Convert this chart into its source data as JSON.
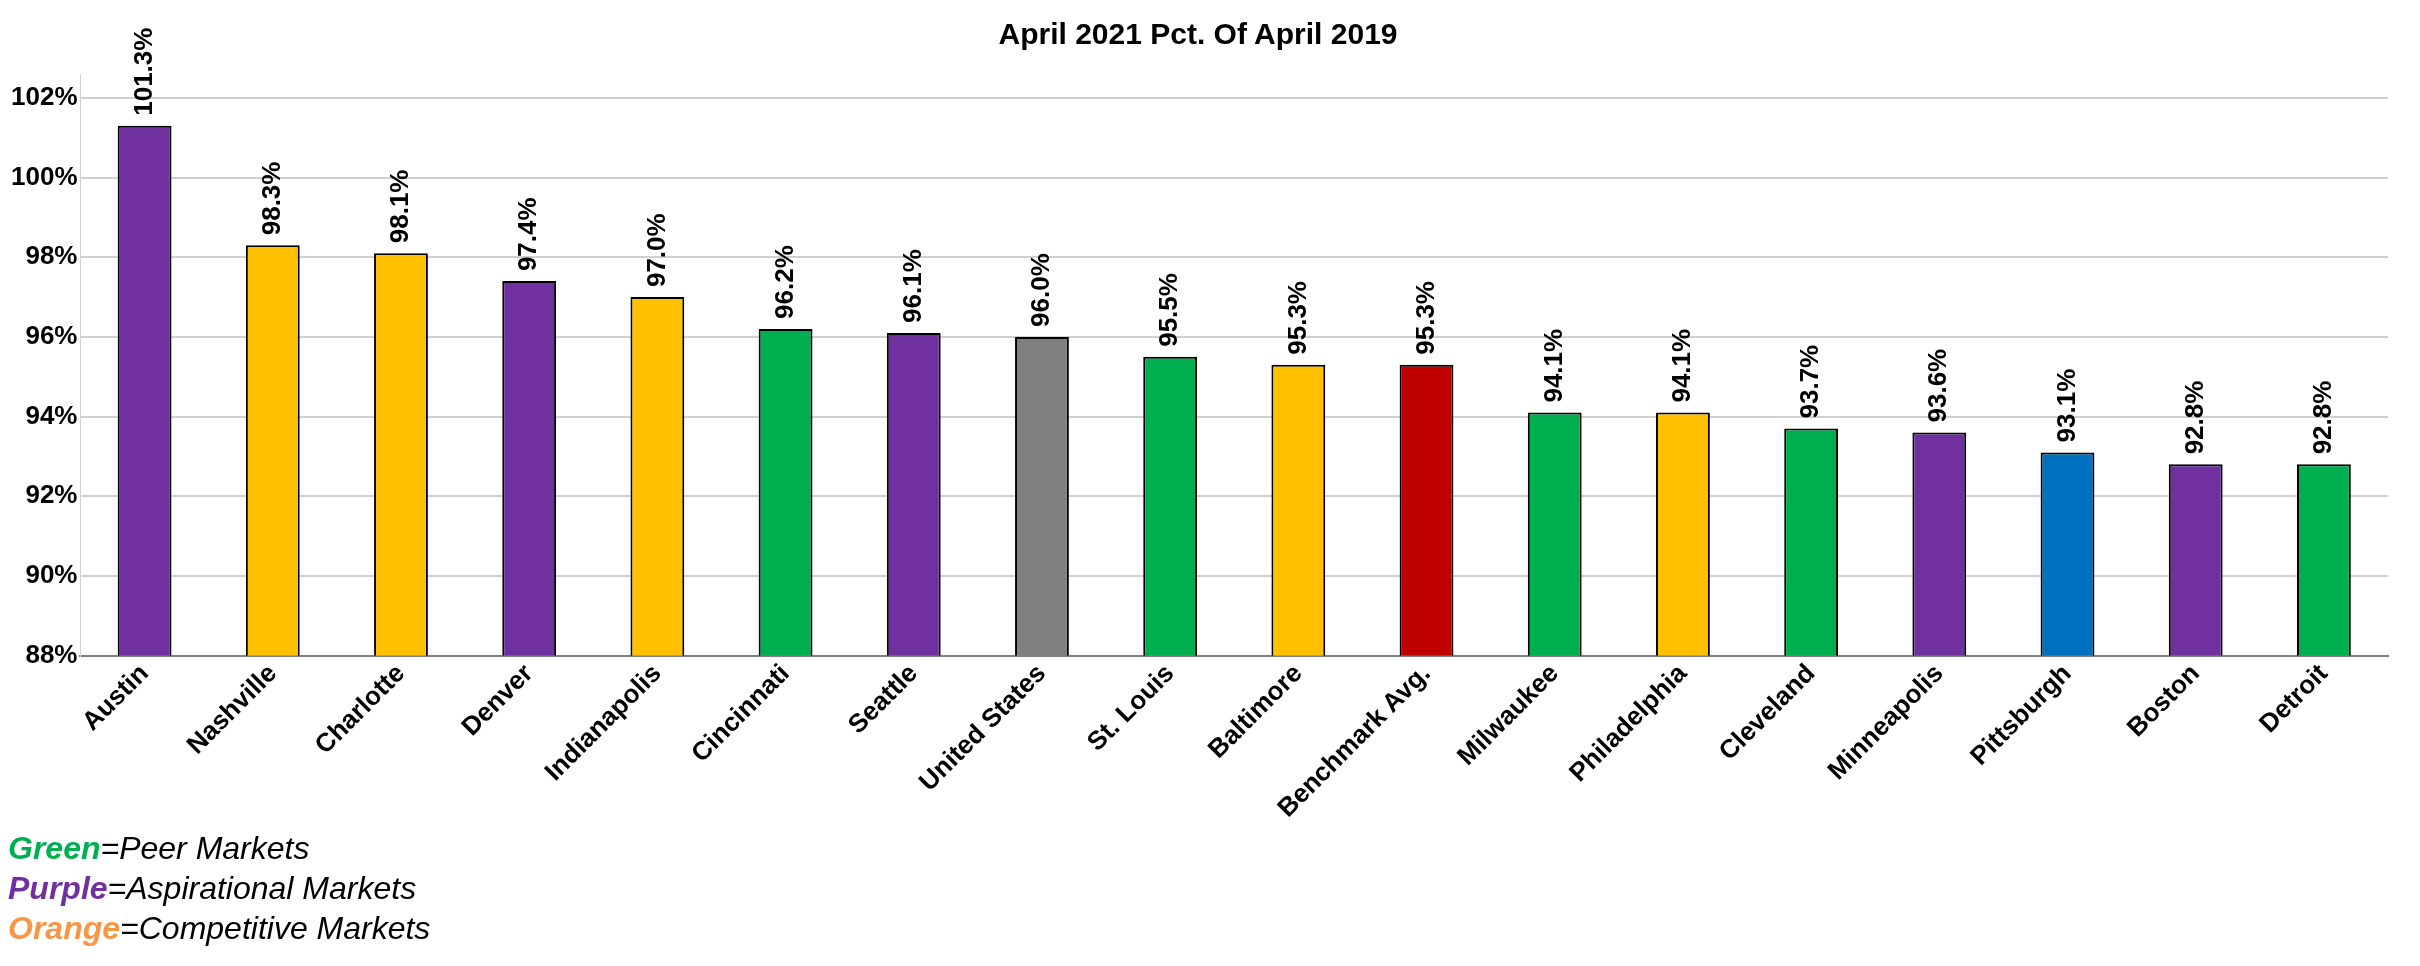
{
  "chart_data": {
    "type": "bar",
    "title": "April 2021 Pct. Of April 2019",
    "categories": [
      "Austin",
      "Nashville",
      "Charlotte",
      "Denver",
      "Indianapolis",
      "Cincinnati",
      "Seattle",
      "United States",
      "St. Louis",
      "Baltimore",
      "Benchmark Avg.",
      "Milwaukee",
      "Philadelphia",
      "Cleveland",
      "Minneapolis",
      "Pittsburgh",
      "Boston",
      "Detroit"
    ],
    "values": [
      101.3,
      98.3,
      98.1,
      97.4,
      97.0,
      96.2,
      96.1,
      96.0,
      95.5,
      95.3,
      95.3,
      94.1,
      94.1,
      93.7,
      93.6,
      93.1,
      92.8,
      92.8
    ],
    "value_labels": [
      "101.3%",
      "98.3%",
      "98.1%",
      "97.4%",
      "97.0%",
      "96.2%",
      "96.1%",
      "96.0%",
      "95.5%",
      "95.3%",
      "95.3%",
      "94.1%",
      "94.1%",
      "93.7%",
      "93.6%",
      "93.1%",
      "92.8%",
      "92.8%"
    ],
    "colors": [
      "#7030a0",
      "#ffc000",
      "#ffc000",
      "#7030a0",
      "#ffc000",
      "#00b050",
      "#7030a0",
      "#808080",
      "#00b050",
      "#ffc000",
      "#c00000",
      "#00b050",
      "#ffc000",
      "#00b050",
      "#7030a0",
      "#0070c0",
      "#7030a0",
      "#00b050"
    ],
    "ylim": [
      88,
      102.6
    ],
    "yticks": [
      {
        "value": 88,
        "label": "88%"
      },
      {
        "value": 90,
        "label": "90%"
      },
      {
        "value": 92,
        "label": "92%"
      },
      {
        "value": 94,
        "label": "94%"
      },
      {
        "value": 96,
        "label": "96%"
      },
      {
        "value": 98,
        "label": "98%"
      },
      {
        "value": 100,
        "label": "100%"
      },
      {
        "value": 102,
        "label": "102%"
      }
    ],
    "grid": "y",
    "legend": false,
    "annotations": [
      "Green=Peer Markets",
      "Purple=Aspirational Markets",
      "Orange=Competitive Markets"
    ]
  }
}
